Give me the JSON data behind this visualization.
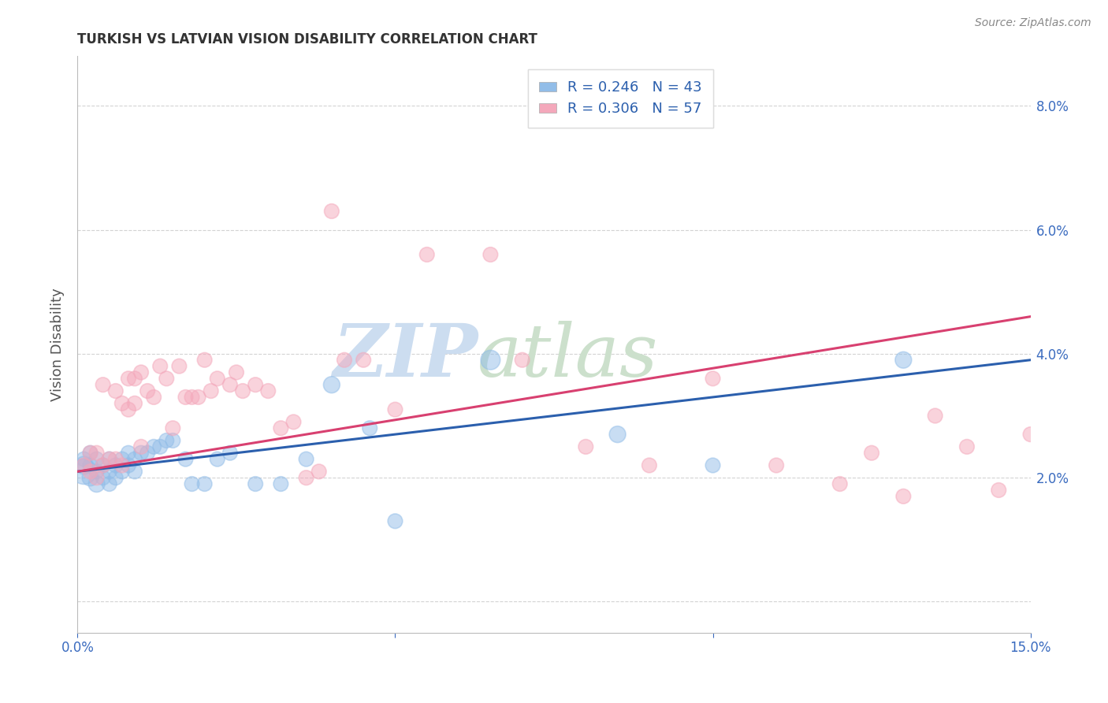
{
  "title": "TURKISH VS LATVIAN VISION DISABILITY CORRELATION CHART",
  "source": "Source: ZipAtlas.com",
  "ylabel": "Vision Disability",
  "xlim": [
    0.0,
    0.15
  ],
  "ylim": [
    -0.005,
    0.088
  ],
  "turks_R": 0.246,
  "turks_N": 43,
  "latvians_R": 0.306,
  "latvians_N": 57,
  "turks_color": "#92bde8",
  "latvians_color": "#f4a8bb",
  "turks_line_color": "#2b5fad",
  "latvians_line_color": "#d84070",
  "background_color": "#ffffff",
  "watermark_zip": "ZIP",
  "watermark_atlas": "atlas",
  "turks_x": [
    0.001,
    0.001,
    0.001,
    0.002,
    0.002,
    0.002,
    0.003,
    0.003,
    0.003,
    0.004,
    0.004,
    0.005,
    0.005,
    0.005,
    0.006,
    0.006,
    0.007,
    0.007,
    0.008,
    0.008,
    0.009,
    0.009,
    0.01,
    0.011,
    0.012,
    0.013,
    0.014,
    0.015,
    0.017,
    0.018,
    0.02,
    0.022,
    0.024,
    0.028,
    0.032,
    0.036,
    0.04,
    0.046,
    0.05,
    0.065,
    0.085,
    0.1,
    0.13
  ],
  "turks_y": [
    0.021,
    0.022,
    0.023,
    0.02,
    0.022,
    0.024,
    0.019,
    0.021,
    0.023,
    0.02,
    0.022,
    0.019,
    0.021,
    0.023,
    0.02,
    0.022,
    0.021,
    0.023,
    0.022,
    0.024,
    0.021,
    0.023,
    0.024,
    0.024,
    0.025,
    0.025,
    0.026,
    0.026,
    0.023,
    0.019,
    0.019,
    0.023,
    0.024,
    0.019,
    0.019,
    0.023,
    0.035,
    0.028,
    0.013,
    0.039,
    0.027,
    0.022,
    0.039
  ],
  "turks_sizes": [
    60,
    30,
    20,
    25,
    20,
    20,
    25,
    20,
    20,
    20,
    20,
    20,
    20,
    20,
    20,
    20,
    20,
    20,
    20,
    20,
    20,
    20,
    20,
    20,
    20,
    20,
    20,
    20,
    20,
    20,
    20,
    20,
    20,
    20,
    20,
    20,
    25,
    20,
    20,
    35,
    25,
    20,
    25
  ],
  "latvians_x": [
    0.001,
    0.002,
    0.002,
    0.003,
    0.003,
    0.004,
    0.004,
    0.005,
    0.006,
    0.006,
    0.007,
    0.007,
    0.008,
    0.008,
    0.009,
    0.009,
    0.01,
    0.01,
    0.011,
    0.012,
    0.013,
    0.014,
    0.015,
    0.016,
    0.017,
    0.018,
    0.019,
    0.02,
    0.021,
    0.022,
    0.024,
    0.025,
    0.026,
    0.028,
    0.03,
    0.032,
    0.034,
    0.036,
    0.038,
    0.04,
    0.042,
    0.045,
    0.05,
    0.055,
    0.065,
    0.07,
    0.08,
    0.09,
    0.1,
    0.11,
    0.12,
    0.125,
    0.13,
    0.135,
    0.14,
    0.145,
    0.15
  ],
  "latvians_y": [
    0.022,
    0.021,
    0.024,
    0.02,
    0.024,
    0.022,
    0.035,
    0.023,
    0.023,
    0.034,
    0.022,
    0.032,
    0.031,
    0.036,
    0.032,
    0.036,
    0.025,
    0.037,
    0.034,
    0.033,
    0.038,
    0.036,
    0.028,
    0.038,
    0.033,
    0.033,
    0.033,
    0.039,
    0.034,
    0.036,
    0.035,
    0.037,
    0.034,
    0.035,
    0.034,
    0.028,
    0.029,
    0.02,
    0.021,
    0.063,
    0.039,
    0.039,
    0.031,
    0.056,
    0.056,
    0.039,
    0.025,
    0.022,
    0.036,
    0.022,
    0.019,
    0.024,
    0.017,
    0.03,
    0.025,
    0.018,
    0.027
  ],
  "latvians_sizes": [
    20,
    20,
    20,
    20,
    20,
    20,
    20,
    20,
    20,
    20,
    20,
    20,
    20,
    20,
    20,
    20,
    20,
    20,
    20,
    20,
    20,
    20,
    20,
    20,
    20,
    20,
    20,
    20,
    20,
    20,
    20,
    20,
    20,
    20,
    20,
    20,
    20,
    20,
    20,
    20,
    20,
    20,
    20,
    20,
    20,
    20,
    20,
    20,
    20,
    20,
    20,
    20,
    20,
    20,
    20,
    20,
    20
  ],
  "ytick_positions": [
    0.0,
    0.02,
    0.04,
    0.06,
    0.08
  ],
  "ytick_labels": [
    "",
    "2.0%",
    "4.0%",
    "6.0%",
    "8.0%"
  ],
  "xtick_positions": [
    0.0,
    0.05,
    0.1,
    0.15
  ],
  "xtick_labels_show": [
    "0.0%",
    "",
    "",
    "15.0%"
  ],
  "title_fontsize": 12,
  "tick_fontsize": 12,
  "label_fontsize": 13
}
